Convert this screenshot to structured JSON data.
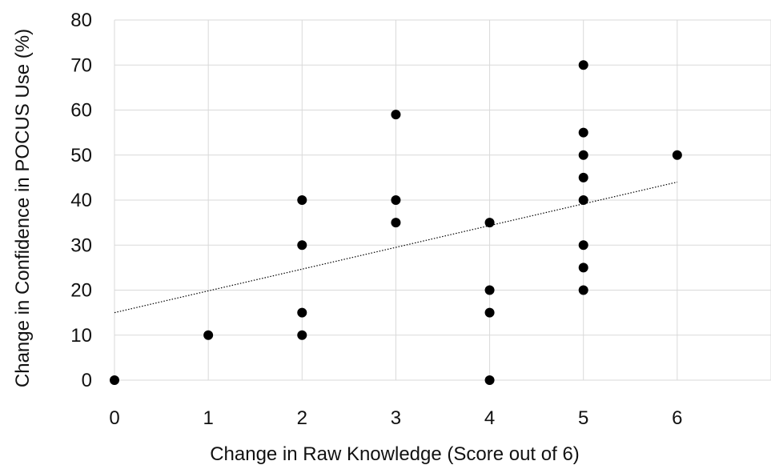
{
  "chart_data": {
    "type": "scatter",
    "xlabel": "Change in Raw Knowledge (Score out of 6)",
    "ylabel": "Change in Confidence in POCUS Use (%)",
    "xlim": [
      0,
      7
    ],
    "ylim": [
      0,
      80
    ],
    "xticks": [
      "0",
      "1",
      "2",
      "3",
      "4",
      "5",
      "6"
    ],
    "yticks": [
      "0",
      "10",
      "20",
      "30",
      "40",
      "50",
      "60",
      "70",
      "80"
    ],
    "grid": true,
    "legend": false,
    "marker_color": "#000000",
    "gridline_color": "#d9d9d9",
    "trendline": {
      "style": "dotted",
      "x": [
        0,
        6
      ],
      "y": [
        15,
        44
      ]
    },
    "points": [
      {
        "x": 0,
        "y": 0
      },
      {
        "x": 1,
        "y": 10
      },
      {
        "x": 2,
        "y": 10
      },
      {
        "x": 2,
        "y": 15
      },
      {
        "x": 2,
        "y": 30
      },
      {
        "x": 2,
        "y": 40
      },
      {
        "x": 3,
        "y": 35
      },
      {
        "x": 3,
        "y": 40
      },
      {
        "x": 3,
        "y": 59
      },
      {
        "x": 4,
        "y": 0
      },
      {
        "x": 4,
        "y": 15
      },
      {
        "x": 4,
        "y": 20
      },
      {
        "x": 4,
        "y": 35
      },
      {
        "x": 5,
        "y": 20
      },
      {
        "x": 5,
        "y": 25
      },
      {
        "x": 5,
        "y": 30
      },
      {
        "x": 5,
        "y": 40
      },
      {
        "x": 5,
        "y": 45
      },
      {
        "x": 5,
        "y": 50
      },
      {
        "x": 5,
        "y": 55
      },
      {
        "x": 5,
        "y": 70
      },
      {
        "x": 6,
        "y": 50
      }
    ]
  }
}
